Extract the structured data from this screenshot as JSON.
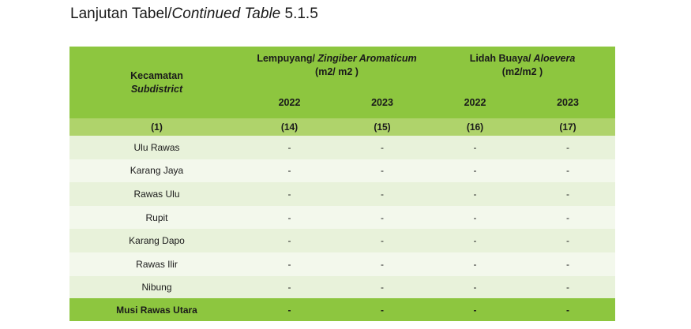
{
  "page": {
    "title_prefix": "Lanjutan Tabel/",
    "title_italic": "Continued Table",
    "title_suffix": " 5.1.5"
  },
  "table": {
    "header": {
      "subdistrict_label": "Kecamatan",
      "subdistrict_label_en": "Subdistrict",
      "groups": [
        {
          "name": "Lempuyang/",
          "name_en": " Zingiber Aromaticum",
          "unit": "(m2/ m2 )",
          "years": [
            "2022",
            "2023"
          ]
        },
        {
          "name": "Lidah Buaya/",
          "name_en": " Aloevera",
          "unit": "(m2/m2 )",
          "years": [
            "2022",
            "2023"
          ]
        }
      ]
    },
    "column_numbers": [
      "(1)",
      "(14)",
      "(15)",
      "(16)",
      "(17)"
    ],
    "rows": [
      {
        "name": "Ulu Rawas",
        "values": [
          "-",
          "-",
          "-",
          "-"
        ]
      },
      {
        "name": "Karang Jaya",
        "values": [
          "-",
          "-",
          "-",
          "-"
        ]
      },
      {
        "name": "Rawas Ulu",
        "values": [
          "-",
          "-",
          "-",
          "-"
        ]
      },
      {
        "name": "Rupit",
        "values": [
          "-",
          "-",
          "-",
          "-"
        ]
      },
      {
        "name": "Karang Dapo",
        "values": [
          "-",
          "-",
          "-",
          "-"
        ]
      },
      {
        "name": "Rawas Ilir",
        "values": [
          "-",
          "-",
          "-",
          "-"
        ]
      },
      {
        "name": "Nibung",
        "values": [
          "-",
          "-",
          "-",
          "-"
        ]
      }
    ],
    "total": {
      "name": "Musi Rawas Utara",
      "values": [
        "-",
        "-",
        "-",
        "-"
      ]
    }
  }
}
